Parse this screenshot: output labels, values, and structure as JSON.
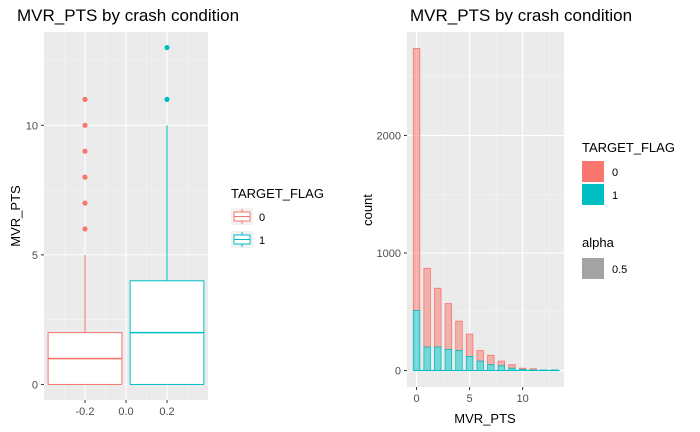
{
  "chart_data": [
    {
      "type": "box",
      "title": "MVR_PTS by crash condition",
      "ylabel": "MVR_PTS",
      "xlabel": "",
      "xlim": [
        -0.4,
        0.4
      ],
      "xticks": [
        -0.2,
        0.0,
        0.2
      ],
      "xtick_labels": [
        "-0.2",
        "0.0",
        "0.2"
      ],
      "ylim": [
        -0.6,
        13.6
      ],
      "yticks": [
        0,
        5,
        10
      ],
      "ytick_labels": [
        "0",
        "5",
        "10"
      ],
      "grid": true,
      "legend": {
        "title": "TARGET_FLAG",
        "position": "right",
        "items": [
          "0",
          "1"
        ]
      },
      "colors": {
        "0": "#F8766D",
        "1": "#00BFC4"
      },
      "boxes": [
        {
          "group": "0",
          "x": -0.2,
          "q1": 0,
          "median": 1,
          "q3": 2,
          "whisker_low": 0,
          "whisker_high": 5,
          "outliers": [
            6,
            7,
            8,
            9,
            10,
            11
          ]
        },
        {
          "group": "1",
          "x": 0.2,
          "q1": 0,
          "median": 2,
          "q3": 4,
          "whisker_low": 0,
          "whisker_high": 10,
          "outliers": [
            11,
            13
          ]
        }
      ]
    },
    {
      "type": "bar",
      "title": "MVR_PTS by crash condition",
      "xlabel": "MVR_PTS",
      "ylabel": "count",
      "xlim": [
        -0.9,
        13.9
      ],
      "xticks": [
        0,
        5,
        10
      ],
      "xtick_labels": [
        "0",
        "5",
        "10"
      ],
      "ylim": [
        -140,
        2880
      ],
      "yticks": [
        0,
        1000,
        2000
      ],
      "ytick_labels": [
        "0",
        "1000",
        "2000"
      ],
      "grid": true,
      "stacked": true,
      "legend": [
        {
          "title": "TARGET_FLAG",
          "items": [
            "0",
            "1"
          ]
        },
        {
          "title": "alpha",
          "items": [
            "0.5"
          ]
        }
      ],
      "colors": {
        "0": "#F8766D",
        "1": "#00BFC4",
        "alpha": "#A3A3A3"
      },
      "categories": [
        0,
        1,
        2,
        3,
        4,
        5,
        6,
        7,
        8,
        9,
        10,
        11,
        12,
        13
      ],
      "series": [
        {
          "name": "0",
          "values": [
            2230,
            670,
            500,
            390,
            250,
            190,
            90,
            80,
            40,
            30,
            10,
            10,
            0,
            0
          ]
        },
        {
          "name": "1",
          "values": [
            510,
            200,
            200,
            180,
            170,
            120,
            80,
            50,
            40,
            20,
            10,
            5,
            5,
            5
          ]
        }
      ]
    }
  ]
}
